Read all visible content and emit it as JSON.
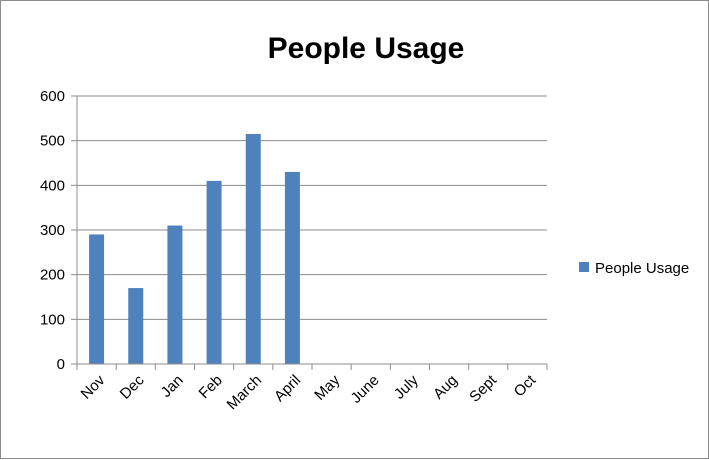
{
  "chart_data": {
    "type": "bar",
    "title": "People Usage",
    "xlabel": "",
    "ylabel": "",
    "categories": [
      "Nov",
      "Dec",
      "Jan",
      "Feb",
      "March",
      "April",
      "May",
      "June",
      "July",
      "Aug",
      "Sept",
      "Oct"
    ],
    "series": [
      {
        "name": "People Usage",
        "values": [
          290,
          170,
          310,
          410,
          515,
          430,
          null,
          null,
          null,
          null,
          null,
          null
        ],
        "color": "#4f81bd"
      }
    ],
    "ylim": [
      0,
      600
    ],
    "yticks": [
      0,
      100,
      200,
      300,
      400,
      500,
      600
    ],
    "grid": true,
    "legend": "right"
  }
}
